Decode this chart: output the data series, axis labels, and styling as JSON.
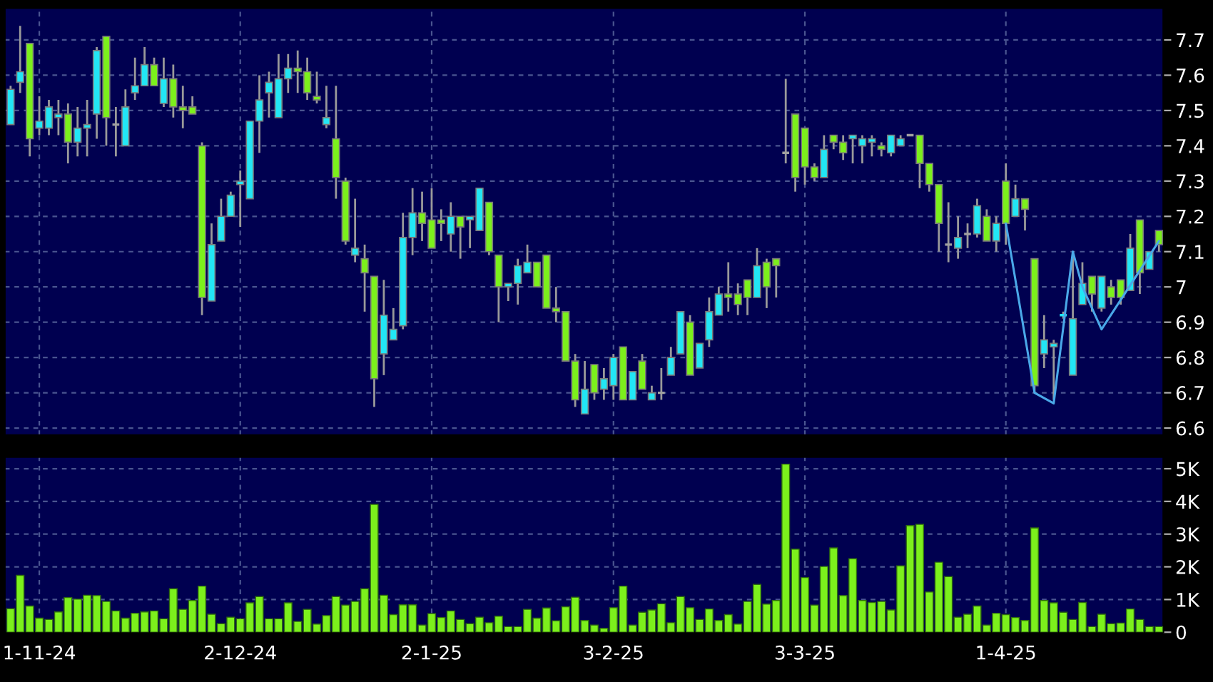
{
  "chart_data": [
    {
      "type": "candlestick",
      "categories": [
        null,
        null,
        null,
        null,
        null,
        null,
        null,
        null,
        null,
        null,
        null,
        null,
        null,
        null,
        null,
        null,
        null,
        null,
        null,
        null,
        null,
        null,
        null,
        null,
        null,
        null,
        null,
        null,
        null,
        null,
        null,
        null,
        null,
        null,
        null,
        null,
        null,
        null,
        null,
        null,
        null,
        null,
        null,
        null,
        null,
        null,
        null,
        null,
        null,
        null,
        null,
        null,
        null,
        null,
        null,
        null,
        null,
        null,
        null,
        null,
        null,
        null,
        null,
        null,
        null,
        null,
        null,
        null,
        null,
        null,
        null,
        null,
        null,
        null,
        null,
        null,
        null,
        null,
        null,
        null,
        null,
        null,
        null,
        null,
        null,
        null,
        null,
        null,
        null,
        null,
        null,
        null,
        null,
        null,
        null,
        null,
        null,
        null,
        null,
        null,
        null,
        null,
        null,
        null,
        null,
        null,
        null,
        null,
        null,
        null,
        null,
        null,
        null,
        null,
        null,
        null,
        null,
        null,
        null,
        null,
        null
      ],
      "ohlc": [
        [
          7.46,
          7.57,
          7.46,
          7.56
        ],
        [
          7.58,
          7.74,
          7.55,
          7.61
        ],
        [
          7.69,
          7.69,
          7.37,
          7.42
        ],
        [
          7.45,
          7.54,
          7.43,
          7.47
        ],
        [
          7.45,
          7.53,
          7.43,
          7.51
        ],
        [
          7.48,
          7.53,
          7.43,
          7.49
        ],
        [
          7.49,
          7.52,
          7.35,
          7.41
        ],
        [
          7.41,
          7.51,
          7.37,
          7.45
        ],
        [
          7.45,
          7.53,
          7.37,
          7.46
        ],
        [
          7.49,
          7.68,
          7.42,
          7.67
        ],
        [
          7.71,
          7.71,
          7.4,
          7.48
        ],
        [
          7.46,
          7.51,
          7.37,
          7.46
        ],
        [
          7.4,
          7.56,
          7.4,
          7.51
        ],
        [
          7.55,
          7.65,
          7.53,
          7.57
        ],
        [
          7.57,
          7.68,
          7.57,
          7.63
        ],
        [
          7.63,
          7.65,
          7.57,
          7.57
        ],
        [
          7.52,
          7.65,
          7.51,
          7.59
        ],
        [
          7.59,
          7.63,
          7.48,
          7.51
        ],
        [
          7.51,
          7.57,
          7.45,
          7.5
        ],
        [
          7.51,
          7.54,
          7.49,
          7.49
        ],
        [
          7.4,
          7.41,
          6.92,
          6.97
        ],
        [
          6.96,
          7.18,
          6.96,
          7.12
        ],
        [
          7.13,
          7.25,
          7.13,
          7.2
        ],
        [
          7.2,
          7.27,
          7.2,
          7.26
        ],
        [
          7.29,
          7.33,
          7.17,
          7.3
        ],
        [
          7.25,
          7.47,
          7.25,
          7.47
        ],
        [
          7.47,
          7.6,
          7.38,
          7.53
        ],
        [
          7.55,
          7.61,
          7.48,
          7.58
        ],
        [
          7.48,
          7.66,
          7.48,
          7.59
        ],
        [
          7.59,
          7.66,
          7.55,
          7.62
        ],
        [
          7.62,
          7.67,
          7.55,
          7.61
        ],
        [
          7.61,
          7.65,
          7.53,
          7.55
        ],
        [
          7.54,
          7.61,
          7.52,
          7.53
        ],
        [
          7.46,
          7.57,
          7.45,
          7.48
        ],
        [
          7.42,
          7.57,
          7.25,
          7.31
        ],
        [
          7.3,
          7.31,
          7.12,
          7.13
        ],
        [
          7.09,
          7.25,
          7.07,
          7.11
        ],
        [
          7.08,
          7.12,
          6.93,
          7.04
        ],
        [
          7.03,
          7.03,
          6.66,
          6.74
        ],
        [
          6.81,
          7.02,
          6.75,
          6.92
        ],
        [
          6.85,
          6.94,
          6.85,
          6.88
        ],
        [
          6.89,
          7.21,
          6.88,
          7.14
        ],
        [
          7.14,
          7.28,
          7.09,
          7.21
        ],
        [
          7.21,
          7.27,
          7.13,
          7.18
        ],
        [
          7.19,
          7.28,
          7.11,
          7.11
        ],
        [
          7.19,
          7.22,
          7.13,
          7.18
        ],
        [
          7.15,
          7.24,
          7.1,
          7.2
        ],
        [
          7.2,
          7.2,
          7.08,
          7.17
        ],
        [
          7.19,
          7.2,
          7.11,
          7.2
        ],
        [
          7.16,
          7.28,
          7.16,
          7.28
        ],
        [
          7.24,
          7.24,
          7.09,
          7.1
        ],
        [
          7.09,
          7.09,
          6.9,
          7.0
        ],
        [
          7.0,
          7.01,
          6.96,
          7.01
        ],
        [
          7.01,
          7.08,
          6.95,
          7.06
        ],
        [
          7.04,
          7.12,
          7.04,
          7.07
        ],
        [
          7.07,
          7.07,
          7.0,
          7.0
        ],
        [
          7.09,
          7.09,
          6.94,
          6.94
        ],
        [
          6.94,
          7.0,
          6.9,
          6.93
        ],
        [
          6.93,
          6.93,
          6.79,
          6.79
        ],
        [
          6.79,
          6.81,
          6.66,
          6.68
        ],
        [
          6.64,
          6.79,
          6.64,
          6.71
        ],
        [
          6.78,
          6.78,
          6.68,
          6.7
        ],
        [
          6.71,
          6.77,
          6.68,
          6.74
        ],
        [
          6.72,
          6.81,
          6.68,
          6.8
        ],
        [
          6.83,
          6.83,
          6.68,
          6.68
        ],
        [
          6.68,
          6.76,
          6.68,
          6.76
        ],
        [
          6.79,
          6.81,
          6.71,
          6.71
        ],
        [
          6.68,
          6.72,
          6.68,
          6.7
        ],
        [
          6.7,
          6.77,
          6.68,
          6.7
        ],
        [
          6.75,
          6.83,
          6.75,
          6.8
        ],
        [
          6.81,
          6.93,
          6.81,
          6.93
        ],
        [
          6.9,
          6.92,
          6.75,
          6.75
        ],
        [
          6.77,
          6.84,
          6.77,
          6.84
        ],
        [
          6.85,
          6.97,
          6.83,
          6.93
        ],
        [
          6.92,
          7.0,
          6.92,
          6.98
        ],
        [
          6.98,
          7.07,
          6.93,
          6.97
        ],
        [
          6.98,
          7.01,
          6.92,
          6.95
        ],
        [
          7.02,
          7.02,
          6.92,
          6.97
        ],
        [
          6.97,
          7.11,
          6.97,
          7.06
        ],
        [
          7.07,
          7.08,
          6.94,
          7.0
        ],
        [
          7.08,
          7.08,
          6.97,
          7.06
        ],
        [
          7.38,
          7.59,
          7.35,
          7.38
        ],
        [
          7.49,
          7.49,
          7.27,
          7.31
        ],
        [
          7.45,
          7.45,
          7.29,
          7.34
        ],
        [
          7.34,
          7.35,
          7.3,
          7.31
        ],
        [
          7.31,
          7.43,
          7.31,
          7.39
        ],
        [
          7.43,
          7.43,
          7.39,
          7.41
        ],
        [
          7.41,
          7.43,
          7.36,
          7.38
        ],
        [
          7.42,
          7.43,
          7.35,
          7.43
        ],
        [
          7.4,
          7.43,
          7.35,
          7.42
        ],
        [
          7.41,
          7.43,
          7.37,
          7.42
        ],
        [
          7.4,
          7.41,
          7.37,
          7.39
        ],
        [
          7.38,
          7.43,
          7.37,
          7.43
        ],
        [
          7.4,
          7.43,
          7.4,
          7.42
        ],
        [
          7.43,
          7.43,
          7.43,
          7.43
        ],
        [
          7.43,
          7.43,
          7.28,
          7.35
        ],
        [
          7.35,
          7.35,
          7.27,
          7.29
        ],
        [
          7.29,
          7.29,
          7.1,
          7.18
        ],
        [
          7.12,
          7.24,
          7.07,
          7.12
        ],
        [
          7.11,
          7.2,
          7.08,
          7.14
        ],
        [
          7.15,
          7.18,
          7.11,
          7.15
        ],
        [
          7.15,
          7.25,
          7.14,
          7.23
        ],
        [
          7.2,
          7.22,
          7.13,
          7.13
        ],
        [
          7.13,
          7.2,
          7.1,
          7.18
        ],
        [
          7.3,
          7.35,
          7.12,
          7.18
        ],
        [
          7.2,
          7.29,
          7.2,
          7.25
        ],
        [
          7.25,
          7.25,
          7.16,
          7.22
        ],
        [
          7.08,
          7.08,
          6.7,
          6.72
        ],
        [
          6.81,
          6.92,
          6.77,
          6.85
        ],
        [
          6.83,
          6.85,
          6.68,
          6.84
        ],
        [
          6.92,
          6.93,
          6.91,
          6.92
        ],
        [
          6.75,
          7.1,
          6.75,
          6.91
        ],
        [
          6.95,
          7.07,
          6.95,
          7.01
        ],
        [
          7.03,
          7.03,
          6.93,
          6.98
        ],
        [
          6.94,
          7.03,
          6.93,
          7.03
        ],
        [
          7.0,
          7.02,
          6.95,
          6.97
        ],
        [
          7.02,
          7.02,
          6.95,
          6.97
        ],
        [
          6.99,
          7.15,
          6.99,
          7.11
        ],
        [
          7.19,
          7.19,
          6.98,
          7.04
        ],
        [
          7.05,
          7.1,
          7.05,
          7.1
        ],
        [
          7.16,
          7.16,
          7.1,
          7.12
        ]
      ],
      "colors": [
        "#22e6f5",
        "#22e6f5",
        "#7cf01c",
        "#22e6f5",
        "#22e6f5",
        "#22e6f5",
        "#7cf01c",
        "#22e6f5",
        "#22e6f5",
        "#22e6f5",
        "#7cf01c",
        "#a0a0a0",
        "#22e6f5",
        "#22e6f5",
        "#22e6f5",
        "#7cf01c",
        "#22e6f5",
        "#7cf01c",
        "#7cf01c",
        "#7cf01c",
        "#7cf01c",
        "#22e6f5",
        "#22e6f5",
        "#22e6f5",
        "#22e6f5",
        "#22e6f5",
        "#22e6f5",
        "#22e6f5",
        "#22e6f5",
        "#22e6f5",
        "#7cf01c",
        "#7cf01c",
        "#7cf01c",
        "#22e6f5",
        "#7cf01c",
        "#7cf01c",
        "#22e6f5",
        "#7cf01c",
        "#7cf01c",
        "#22e6f5",
        "#22e6f5",
        "#22e6f5",
        "#22e6f5",
        "#7cf01c",
        "#7cf01c",
        "#7cf01c",
        "#22e6f5",
        "#7cf01c",
        "#22e6f5",
        "#22e6f5",
        "#7cf01c",
        "#7cf01c",
        "#22e6f5",
        "#22e6f5",
        "#22e6f5",
        "#7cf01c",
        "#7cf01c",
        "#7cf01c",
        "#7cf01c",
        "#7cf01c",
        "#22e6f5",
        "#7cf01c",
        "#22e6f5",
        "#22e6f5",
        "#7cf01c",
        "#22e6f5",
        "#7cf01c",
        "#22e6f5",
        "#a0a0a0",
        "#22e6f5",
        "#22e6f5",
        "#7cf01c",
        "#22e6f5",
        "#22e6f5",
        "#22e6f5",
        "#7cf01c",
        "#7cf01c",
        "#7cf01c",
        "#22e6f5",
        "#7cf01c",
        "#7cf01c",
        "#a0a0a0",
        "#7cf01c",
        "#7cf01c",
        "#7cf01c",
        "#22e6f5",
        "#7cf01c",
        "#7cf01c",
        "#22e6f5",
        "#22e6f5",
        "#22e6f5",
        "#7cf01c",
        "#22e6f5",
        "#22e6f5",
        "#a0a0a0",
        "#7cf01c",
        "#7cf01c",
        "#7cf01c",
        "#a0a0a0",
        "#22e6f5",
        "#a0a0a0",
        "#22e6f5",
        "#7cf01c",
        "#22e6f5",
        "#7cf01c",
        "#22e6f5",
        "#7cf01c",
        "#7cf01c",
        "#22e6f5",
        "#22e6f5",
        "#22e6f5",
        "#22e6f5",
        "#22e6f5",
        "#7cf01c",
        "#22e6f5",
        "#7cf01c",
        "#7cf01c",
        "#22e6f5",
        "#7cf01c",
        "#22e6f5",
        "#7cf01c"
      ],
      "series": [
        {
          "type": "line",
          "color": "#4aa8e8",
          "values": [
            null,
            null,
            null,
            null,
            null,
            null,
            null,
            null,
            null,
            null,
            null,
            null,
            null,
            null,
            null,
            null,
            null,
            null,
            null,
            null,
            null,
            null,
            null,
            null,
            null,
            null,
            null,
            null,
            null,
            null,
            null,
            null,
            null,
            null,
            null,
            null,
            null,
            null,
            null,
            null,
            null,
            null,
            null,
            null,
            null,
            null,
            null,
            null,
            null,
            null,
            null,
            null,
            null,
            null,
            null,
            null,
            null,
            null,
            null,
            null,
            null,
            null,
            null,
            null,
            null,
            null,
            null,
            null,
            null,
            null,
            null,
            null,
            null,
            null,
            null,
            null,
            null,
            null,
            null,
            null,
            null,
            null,
            null,
            null,
            null,
            null,
            null,
            null,
            null,
            null,
            null,
            null,
            null,
            null,
            null,
            null,
            null,
            null,
            null,
            null,
            null,
            null,
            null,
            null,
            7.18,
            null,
            null,
            6.7,
            null,
            6.67,
            null,
            7.1,
            7.0,
            null,
            6.88,
            null,
            null,
            null,
            null,
            null,
            7.13
          ]
        }
      ],
      "ylim": [
        6.58,
        7.79
      ],
      "yticks": [
        6.6,
        6.7,
        6.8,
        6.9,
        7,
        7.1,
        7.2,
        7.3,
        7.4,
        7.5,
        7.6,
        7.7
      ],
      "grid": true,
      "tick_labels": "y"
    },
    {
      "type": "bar",
      "categories": [
        null,
        null,
        null,
        "1-11-24",
        null,
        null,
        null,
        null,
        null,
        null,
        null,
        null,
        null,
        null,
        null,
        null,
        null,
        null,
        null,
        null,
        null,
        null,
        null,
        null,
        "2-12-24",
        null,
        null,
        null,
        null,
        null,
        null,
        null,
        null,
        null,
        null,
        null,
        null,
        null,
        null,
        null,
        null,
        null,
        null,
        null,
        "2-1-25",
        null,
        null,
        null,
        null,
        null,
        null,
        null,
        null,
        null,
        null,
        null,
        null,
        null,
        null,
        null,
        null,
        null,
        null,
        "3-2-25",
        null,
        null,
        null,
        null,
        null,
        null,
        null,
        null,
        null,
        null,
        null,
        null,
        null,
        null,
        null,
        null,
        null,
        null,
        null,
        "3-3-25",
        null,
        null,
        null,
        null,
        null,
        null,
        null,
        null,
        null,
        null,
        null,
        null,
        null,
        null,
        null,
        null,
        null,
        null,
        null,
        null,
        "1-4-25",
        null,
        null,
        null,
        null,
        null,
        null,
        null,
        null,
        null,
        null,
        null,
        null,
        null,
        null,
        null,
        null
      ],
      "series": [
        {
          "color": "#7cf01c",
          "values": [
            0.72,
            1.74,
            0.8,
            0.43,
            0.39,
            0.62,
            1.06,
            1.01,
            1.13,
            1.12,
            0.94,
            0.65,
            0.43,
            0.58,
            0.62,
            0.65,
            0.41,
            1.33,
            0.7,
            0.97,
            1.41,
            0.55,
            0.26,
            0.46,
            0.41,
            0.9,
            1.09,
            0.41,
            0.41,
            0.9,
            0.33,
            0.7,
            0.25,
            0.51,
            1.09,
            0.83,
            0.94,
            1.33,
            3.91,
            1.13,
            0.54,
            0.84,
            0.84,
            0.22,
            0.57,
            0.45,
            0.65,
            0.39,
            0.26,
            0.46,
            0.29,
            0.49,
            0.17,
            0.17,
            0.7,
            0.43,
            0.74,
            0.35,
            0.78,
            1.07,
            0.36,
            0.22,
            0.12,
            0.75,
            1.41,
            0.22,
            0.61,
            0.68,
            0.87,
            0.29,
            1.09,
            0.75,
            0.39,
            0.71,
            0.36,
            0.54,
            0.25,
            0.94,
            1.46,
            0.86,
            0.97,
            5.14,
            2.54,
            1.67,
            0.83,
            2.01,
            2.58,
            1.12,
            2.25,
            0.97,
            0.91,
            0.94,
            0.68,
            2.03,
            3.26,
            3.3,
            1.23,
            2.14,
            1.7,
            0.46,
            0.55,
            0.8,
            0.22,
            0.58,
            0.54,
            0.45,
            0.36,
            3.19,
            0.97,
            0.9,
            0.61,
            0.39,
            0.91,
            0.17,
            0.55,
            0.26,
            0.28,
            0.71,
            0.39,
            0.17,
            0.17
          ]
        }
      ],
      "ylim": [
        0,
        5.36
      ],
      "yticks": [
        0,
        {
          "value": 1,
          "label": "1K"
        },
        {
          "value": 2,
          "label": "2K"
        },
        {
          "value": 3,
          "label": "3K"
        },
        {
          "value": 4,
          "label": "4K"
        },
        {
          "value": 5,
          "label": "5K"
        }
      ],
      "grid": true
    }
  ]
}
